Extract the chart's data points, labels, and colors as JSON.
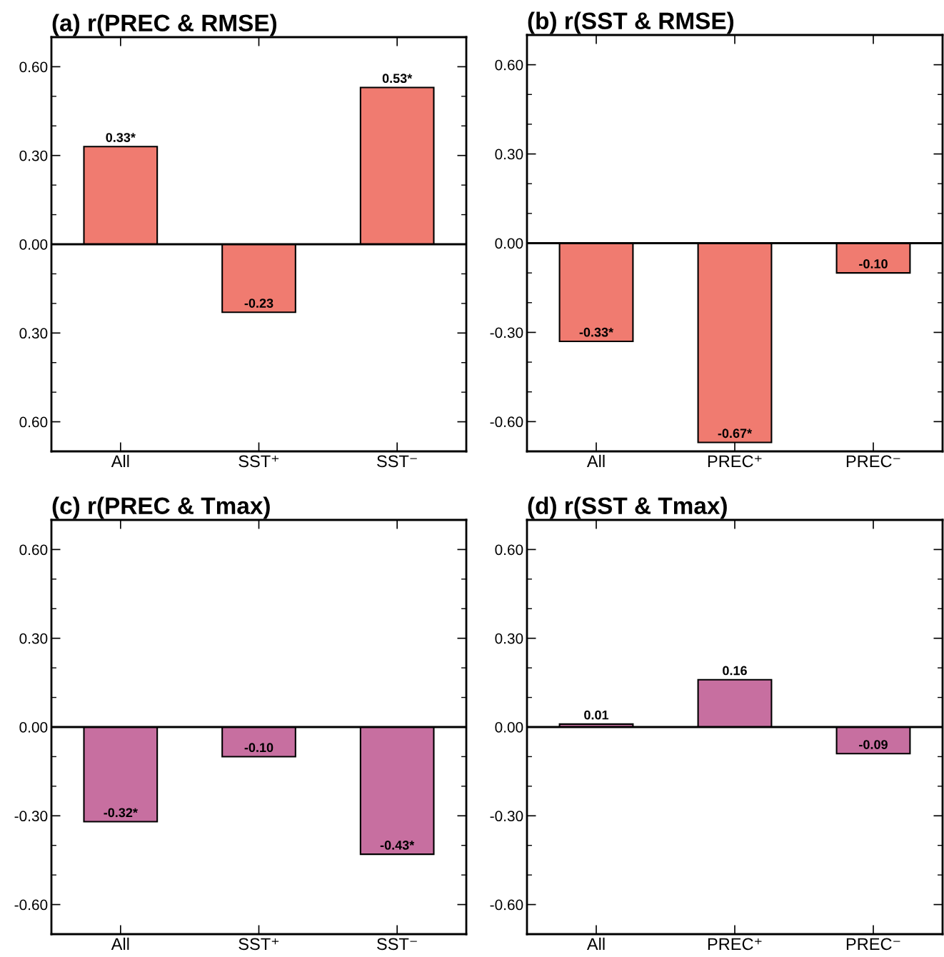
{
  "chart_data": [
    {
      "type": "bar",
      "title": "(a) r(PREC & RMSE)",
      "categories": [
        "All",
        "SST⁺",
        "SST⁻"
      ],
      "color": "#f07b70",
      "values": [
        0.33,
        -0.23,
        0.53
      ],
      "value_labels": [
        "0.33*",
        "-0.23",
        "0.53*"
      ],
      "ylim": [
        -0.7,
        0.7
      ],
      "yticks": [
        {
          "value": 0.6,
          "label": "0.60"
        },
        {
          "value": 0.5,
          "label": null
        },
        {
          "value": 0.4,
          "label": null
        },
        {
          "value": 0.3,
          "label": "0.30"
        },
        {
          "value": 0.2,
          "label": null
        },
        {
          "value": 0.1,
          "label": null
        },
        {
          "value": 0.0,
          "label": "0.00"
        },
        {
          "value": -0.1,
          "label": null
        },
        {
          "value": -0.2,
          "label": null
        },
        {
          "value": -0.3,
          "label": "0.30"
        },
        {
          "value": -0.4,
          "label": null
        },
        {
          "value": -0.5,
          "label": null
        },
        {
          "value": -0.6,
          "label": "0.60"
        }
      ],
      "ref_lines": [
        {
          "axis": "y",
          "value": 0
        }
      ],
      "grid": false
    },
    {
      "type": "bar",
      "title": "(b) r(SST & RMSE)",
      "categories": [
        "All",
        "PREC⁺",
        "PREC⁻"
      ],
      "color": "#f07b70",
      "values": [
        -0.33,
        -0.67,
        -0.1
      ],
      "value_labels": [
        "-0.33*",
        "-0.67*",
        "-0.10"
      ],
      "ylim": [
        -0.7,
        0.7
      ],
      "yticks": [
        {
          "value": 0.6,
          "label": "0.60"
        },
        {
          "value": 0.5,
          "label": null
        },
        {
          "value": 0.4,
          "label": null
        },
        {
          "value": 0.3,
          "label": "0.30"
        },
        {
          "value": 0.2,
          "label": null
        },
        {
          "value": 0.1,
          "label": null
        },
        {
          "value": 0.0,
          "label": "0.00"
        },
        {
          "value": -0.1,
          "label": null
        },
        {
          "value": -0.2,
          "label": null
        },
        {
          "value": -0.3,
          "label": "-0.30"
        },
        {
          "value": -0.4,
          "label": null
        },
        {
          "value": -0.5,
          "label": null
        },
        {
          "value": -0.6,
          "label": "-0.60"
        }
      ],
      "ref_lines": [
        {
          "axis": "y",
          "value": 0
        }
      ],
      "grid": false
    },
    {
      "type": "bar",
      "title": "(c) r(PREC & Tmax)",
      "categories": [
        "All",
        "SST⁺",
        "SST⁻"
      ],
      "color": "#c76fa0",
      "values": [
        -0.32,
        -0.1,
        -0.43
      ],
      "value_labels": [
        "-0.32*",
        "-0.10",
        "-0.43*"
      ],
      "ylim": [
        -0.7,
        0.7
      ],
      "yticks": [
        {
          "value": 0.6,
          "label": "0.60"
        },
        {
          "value": 0.5,
          "label": null
        },
        {
          "value": 0.4,
          "label": null
        },
        {
          "value": 0.3,
          "label": "0.30"
        },
        {
          "value": 0.2,
          "label": null
        },
        {
          "value": 0.1,
          "label": null
        },
        {
          "value": 0.0,
          "label": "0.00"
        },
        {
          "value": -0.1,
          "label": null
        },
        {
          "value": -0.2,
          "label": null
        },
        {
          "value": -0.3,
          "label": "-0.30"
        },
        {
          "value": -0.4,
          "label": null
        },
        {
          "value": -0.5,
          "label": null
        },
        {
          "value": -0.6,
          "label": "-0.60"
        }
      ],
      "ref_lines": [
        {
          "axis": "y",
          "value": 0
        }
      ],
      "grid": false
    },
    {
      "type": "bar",
      "title": "(d) r(SST & Tmax)",
      "categories": [
        "All",
        "PREC⁺",
        "PREC⁻"
      ],
      "color": "#c76fa0",
      "values": [
        0.01,
        0.16,
        -0.09
      ],
      "value_labels": [
        "0.01",
        "0.16",
        "-0.09"
      ],
      "ylim": [
        -0.7,
        0.7
      ],
      "yticks": [
        {
          "value": 0.6,
          "label": "0.60"
        },
        {
          "value": 0.5,
          "label": null
        },
        {
          "value": 0.4,
          "label": null
        },
        {
          "value": 0.3,
          "label": "0.30"
        },
        {
          "value": 0.2,
          "label": null
        },
        {
          "value": 0.1,
          "label": null
        },
        {
          "value": 0.0,
          "label": "0.00"
        },
        {
          "value": -0.1,
          "label": null
        },
        {
          "value": -0.2,
          "label": null
        },
        {
          "value": -0.3,
          "label": "-0.30"
        },
        {
          "value": -0.4,
          "label": null
        },
        {
          "value": -0.5,
          "label": null
        },
        {
          "value": -0.6,
          "label": "-0.60"
        }
      ],
      "ref_lines": [
        {
          "axis": "y",
          "value": 0
        }
      ],
      "grid": false
    }
  ]
}
